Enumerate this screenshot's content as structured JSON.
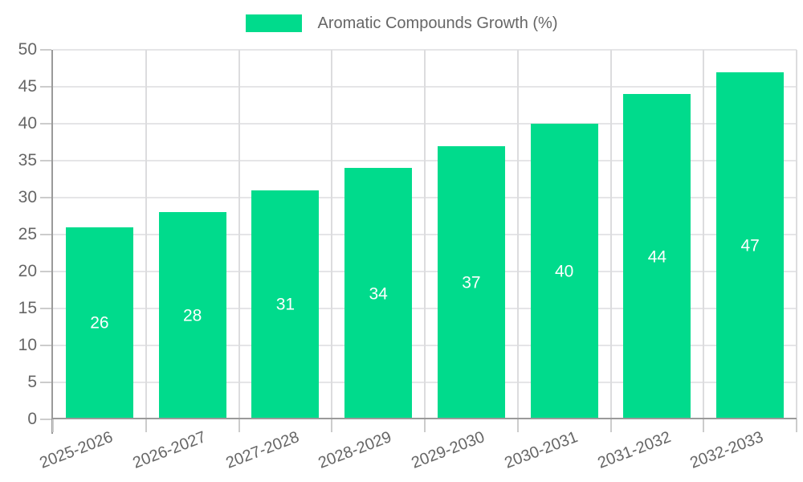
{
  "legend": {
    "label": "Aromatic Compounds Growth (%)"
  },
  "chart_data": {
    "type": "bar",
    "title": "",
    "xlabel": "",
    "ylabel": "",
    "categories": [
      "2025-2026",
      "2026-2027",
      "2027-2028",
      "2028-2029",
      "2029-2030",
      "2030-2031",
      "2031-2032",
      "2032-2033"
    ],
    "series": [
      {
        "name": "Aromatic Compounds Growth (%)",
        "values": [
          26,
          28,
          31,
          34,
          37,
          40,
          44,
          47
        ]
      }
    ],
    "value_labels": [
      "26",
      "28",
      "31",
      "34",
      "37",
      "40",
      "44",
      "47"
    ],
    "ylim": [
      0,
      50
    ],
    "yticks": [
      0,
      5,
      10,
      15,
      20,
      25,
      30,
      35,
      40,
      45,
      50
    ],
    "grid": true,
    "legend_position": "top"
  },
  "colors": {
    "bar": "#00DB8C",
    "value_text": "#ffffff",
    "axis_text": "#666666",
    "grid_h": "#e5e5e7",
    "grid_v": "#dcdcde",
    "axis_line": "#9a9a9a",
    "tick": "#cccccc",
    "background": "#ffffff"
  }
}
